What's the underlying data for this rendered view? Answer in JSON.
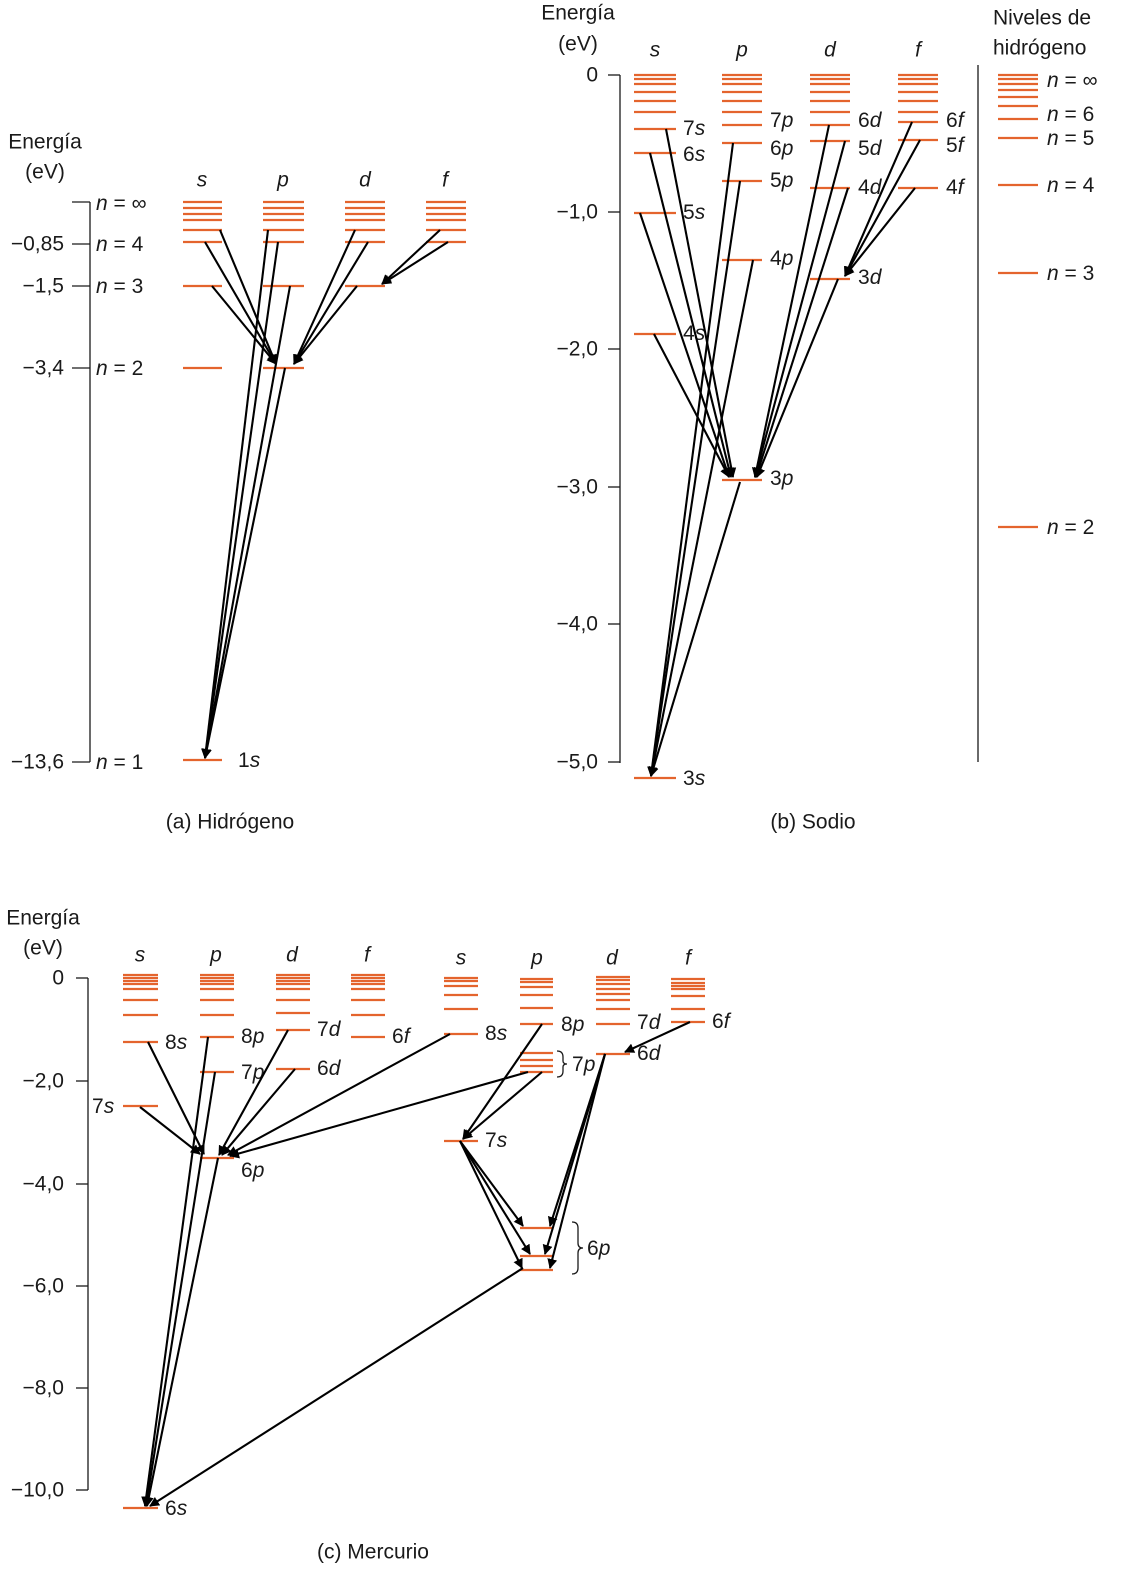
{
  "colors": {
    "level": "#e4642d",
    "arrow": "#000000",
    "text": "#1a1a1a"
  },
  "panel_a": {
    "axis_title": [
      "Energía",
      "(eV)"
    ],
    "ticks": [
      "−0,85",
      "−1,5",
      "−3,4",
      "−13,6"
    ],
    "n_labels": [
      "n = ∞",
      "n = 4",
      "n = 3",
      "n = 2",
      "n = 1"
    ],
    "columns": [
      "s",
      "p",
      "d",
      "f"
    ],
    "level_labels": [
      "1s"
    ],
    "caption": "(a) Hidrógeno"
  },
  "panel_b": {
    "axis_title": [
      "Energía",
      "(eV)"
    ],
    "ticks": [
      "0",
      "−1,0",
      "−2,0",
      "−3,0",
      "−4,0",
      "−5,0"
    ],
    "columns": [
      "s",
      "p",
      "d",
      "f"
    ],
    "level_labels": [
      "7s",
      "6s",
      "5s",
      "4s",
      "3s",
      "7p",
      "6p",
      "5p",
      "4p",
      "3p",
      "6d",
      "5d",
      "4d",
      "3d",
      "6f",
      "5f",
      "4f"
    ],
    "hydrogen": {
      "title": [
        "Niveles de",
        "hidrógeno"
      ],
      "n_labels": [
        "n = ∞",
        "n = 6",
        "n = 5",
        "n = 4",
        "n = 3",
        "n = 2"
      ]
    },
    "caption": "(b) Sodio"
  },
  "panel_c": {
    "axis_title": [
      "Energía",
      "(eV)"
    ],
    "ticks": [
      "0",
      "−2,0",
      "−4,0",
      "−6,0",
      "−8,0",
      "−10,0"
    ],
    "columns_left": [
      "s",
      "p",
      "d",
      "f"
    ],
    "columns_right": [
      "s",
      "p",
      "d",
      "f"
    ],
    "level_labels": [
      "8s",
      "7s",
      "8p",
      "7p",
      "6p",
      "7d",
      "6d",
      "6f",
      "8s",
      "8p",
      "7p",
      "7s",
      "7d",
      "6d",
      "6f",
      "6p",
      "6s"
    ],
    "caption": "(c) Mercurio"
  }
}
